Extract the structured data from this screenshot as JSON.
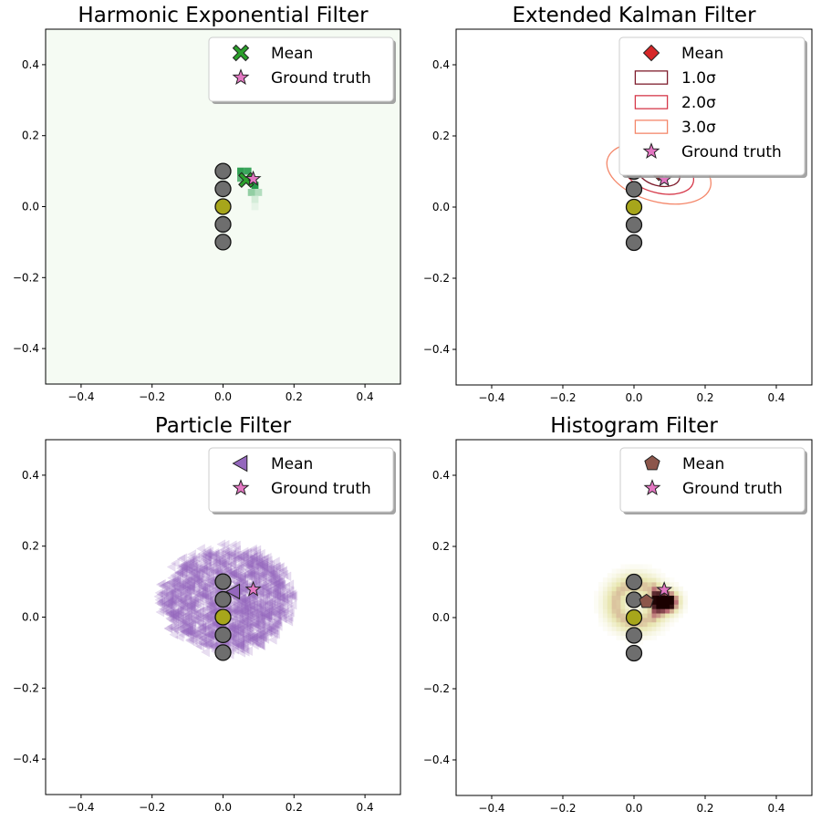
{
  "figure": {
    "background": "#ffffff"
  },
  "chart_data": [
    {
      "type": "heatmap",
      "title": "Harmonic Exponential Filter",
      "xlim": [
        -0.5,
        0.5
      ],
      "ylim": [
        -0.5,
        0.5
      ],
      "x_ticks": [
        -0.4,
        -0.2,
        0.0,
        0.2,
        0.4
      ],
      "y_ticks": [
        -0.4,
        -0.2,
        0.0,
        0.2,
        0.4
      ],
      "x_tick_labels": [
        "−0.4",
        "−0.2",
        "0.0",
        "0.2",
        "0.4"
      ],
      "y_tick_labels": [
        "−0.4",
        "−0.2",
        "0.0",
        "0.2",
        "0.4"
      ],
      "background_color": "#f5fbf3",
      "density_color": "#1a9641",
      "density_cells": [
        {
          "x": 0.05,
          "y": 0.1,
          "w": 0.02
        },
        {
          "x": 0.07,
          "y": 0.1,
          "w": 0.02
        },
        {
          "x": 0.09,
          "y": 0.06,
          "w": 0.02
        },
        {
          "x": 0.05,
          "y": 0.08,
          "w": 0.02
        },
        {
          "x": 0.08,
          "y": 0.08,
          "w": 0.02
        },
        {
          "x": 0.08,
          "y": 0.04,
          "w": 0.02
        },
        {
          "x": 0.1,
          "y": 0.04,
          "w": 0.02
        },
        {
          "x": 0.09,
          "y": 0.02,
          "w": 0.02
        },
        {
          "x": 0.09,
          "y": 0.0,
          "w": 0.02
        }
      ],
      "density_weights": [
        0.9,
        0.85,
        0.95,
        0.7,
        0.75,
        0.45,
        0.3,
        0.15,
        0.07
      ],
      "landmarks": [
        {
          "x": 0.0,
          "y": 0.1,
          "color": "#6e6e6e"
        },
        {
          "x": 0.0,
          "y": 0.05,
          "color": "#6e6e6e"
        },
        {
          "x": 0.0,
          "y": 0.0,
          "color": "#a7a61b"
        },
        {
          "x": 0.0,
          "y": -0.05,
          "color": "#6e6e6e"
        },
        {
          "x": 0.0,
          "y": -0.1,
          "color": "#6e6e6e"
        }
      ],
      "mean": {
        "x": 0.065,
        "y": 0.075,
        "marker": "x-cross",
        "color": "#2ca02c"
      },
      "ground_truth": {
        "x": 0.085,
        "y": 0.078,
        "marker": "star",
        "color": "#e377c2"
      },
      "legend": {
        "position": "top-right",
        "entries": [
          {
            "label": "Mean",
            "marker": "x-cross",
            "color": "#2ca02c"
          },
          {
            "label": "Ground truth",
            "marker": "star",
            "color": "#e377c2"
          }
        ]
      }
    },
    {
      "type": "scatter",
      "title": "Extended Kalman Filter",
      "xlim": [
        -0.5,
        0.5
      ],
      "ylim": [
        -0.5,
        0.5
      ],
      "x_ticks": [
        -0.4,
        -0.2,
        0.0,
        0.2,
        0.4
      ],
      "y_ticks": [
        -0.4,
        -0.2,
        0.0,
        0.2,
        0.4
      ],
      "x_tick_labels": [
        "−0.4",
        "−0.2",
        "0.0",
        "0.2",
        "0.4"
      ],
      "y_tick_labels": [
        "−0.4",
        "−0.2",
        "0.0",
        "0.2",
        "0.4"
      ],
      "ellipses": [
        {
          "label": "1.0σ",
          "cx": 0.07,
          "cy": 0.095,
          "rx": 0.06,
          "ry": 0.035,
          "angle": -15,
          "color": "#7f1d2d"
        },
        {
          "label": "2.0σ",
          "cx": 0.07,
          "cy": 0.095,
          "rx": 0.1,
          "ry": 0.055,
          "angle": -15,
          "color": "#d6394a"
        },
        {
          "label": "3.0σ",
          "cx": 0.07,
          "cy": 0.095,
          "rx": 0.15,
          "ry": 0.08,
          "angle": -15,
          "color": "#f4876a"
        }
      ],
      "landmarks": [
        {
          "x": 0.0,
          "y": 0.1,
          "color": "#6e6e6e"
        },
        {
          "x": 0.0,
          "y": 0.05,
          "color": "#6e6e6e"
        },
        {
          "x": 0.0,
          "y": 0.0,
          "color": "#a7a61b"
        },
        {
          "x": 0.0,
          "y": -0.05,
          "color": "#6e6e6e"
        },
        {
          "x": 0.0,
          "y": -0.1,
          "color": "#6e6e6e"
        }
      ],
      "mean": {
        "x": 0.07,
        "y": 0.095,
        "marker": "diamond",
        "color": "#d62728"
      },
      "ground_truth": {
        "x": 0.085,
        "y": 0.078,
        "marker": "star",
        "color": "#e377c2"
      },
      "legend": {
        "position": "top-right",
        "entries": [
          {
            "label": "Mean",
            "marker": "diamond",
            "color": "#d62728"
          },
          {
            "label": "1.0σ",
            "marker": "rect",
            "color": "#7f1d2d"
          },
          {
            "label": "2.0σ",
            "marker": "rect",
            "color": "#d6394a"
          },
          {
            "label": "3.0σ",
            "marker": "rect",
            "color": "#f4876a"
          },
          {
            "label": "Ground truth",
            "marker": "star",
            "color": "#e377c2"
          }
        ]
      }
    },
    {
      "type": "scatter",
      "title": "Particle Filter",
      "xlim": [
        -0.5,
        0.5
      ],
      "ylim": [
        -0.5,
        0.5
      ],
      "x_ticks": [
        -0.4,
        -0.2,
        0.0,
        0.2,
        0.4
      ],
      "y_ticks": [
        -0.4,
        -0.2,
        0.0,
        0.2,
        0.4
      ],
      "x_tick_labels": [
        "−0.4",
        "−0.2",
        "0.0",
        "0.2",
        "0.4"
      ],
      "y_tick_labels": [
        "−0.4",
        "−0.2",
        "0.0",
        "0.2",
        "0.4"
      ],
      "particles": {
        "count": 1500,
        "center_x": 0.01,
        "center_y": 0.05,
        "radius": 0.16,
        "color": "#9467bd",
        "alpha": 0.22
      },
      "landmarks": [
        {
          "x": 0.0,
          "y": 0.1,
          "color": "#6e6e6e"
        },
        {
          "x": 0.0,
          "y": 0.05,
          "color": "#6e6e6e"
        },
        {
          "x": 0.0,
          "y": 0.0,
          "color": "#a7a61b"
        },
        {
          "x": 0.0,
          "y": -0.05,
          "color": "#6e6e6e"
        },
        {
          "x": 0.0,
          "y": -0.1,
          "color": "#6e6e6e"
        }
      ],
      "mean": {
        "x": 0.03,
        "y": 0.072,
        "marker": "triangle-left",
        "color": "#9467bd"
      },
      "ground_truth": {
        "x": 0.085,
        "y": 0.078,
        "marker": "star",
        "color": "#e377c2"
      },
      "legend": {
        "position": "top-right",
        "entries": [
          {
            "label": "Mean",
            "marker": "triangle-left",
            "color": "#9467bd"
          },
          {
            "label": "Ground truth",
            "marker": "star",
            "color": "#e377c2"
          }
        ]
      }
    },
    {
      "type": "heatmap",
      "title": "Histogram Filter",
      "xlim": [
        -0.5,
        0.5
      ],
      "ylim": [
        -0.5,
        0.5
      ],
      "x_ticks": [
        -0.4,
        -0.2,
        0.0,
        0.2,
        0.4
      ],
      "y_ticks": [
        -0.4,
        -0.2,
        0.0,
        0.2,
        0.4
      ],
      "x_tick_labels": [
        "−0.4",
        "−0.2",
        "0.0",
        "0.2",
        "0.4"
      ],
      "y_tick_labels": [
        "−0.4",
        "−0.2",
        "0.0",
        "0.2",
        "0.4"
      ],
      "histogram": {
        "cell": 0.0125,
        "ring_center_x": 0.005,
        "ring_center_y": 0.04,
        "ring_radius": 0.095,
        "ring_width": 0.035,
        "peak_x": 0.1,
        "peak_y": 0.045
      },
      "landmarks": [
        {
          "x": 0.0,
          "y": 0.1,
          "color": "#6e6e6e"
        },
        {
          "x": 0.0,
          "y": 0.05,
          "color": "#6e6e6e"
        },
        {
          "x": 0.0,
          "y": 0.0,
          "color": "#a7a61b"
        },
        {
          "x": 0.0,
          "y": -0.05,
          "color": "#6e6e6e"
        },
        {
          "x": 0.0,
          "y": -0.1,
          "color": "#6e6e6e"
        }
      ],
      "mean": {
        "x": 0.035,
        "y": 0.045,
        "marker": "pentagon",
        "color": "#8c564b"
      },
      "ground_truth": {
        "x": 0.085,
        "y": 0.078,
        "marker": "star",
        "color": "#e377c2"
      },
      "legend": {
        "position": "top-right",
        "entries": [
          {
            "label": "Mean",
            "marker": "pentagon",
            "color": "#8c564b"
          },
          {
            "label": "Ground truth",
            "marker": "star",
            "color": "#e377c2"
          }
        ]
      }
    }
  ]
}
